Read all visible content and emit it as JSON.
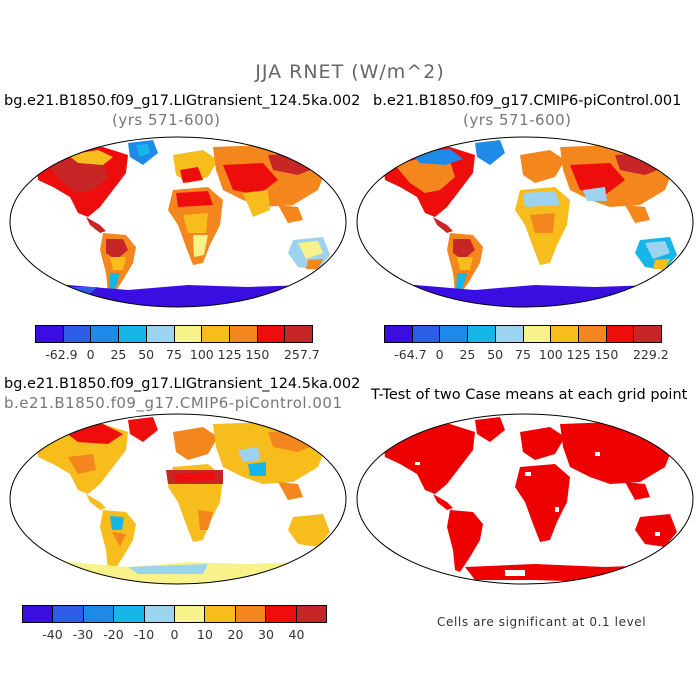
{
  "title": "JJA RNET (W/m^2)",
  "panels": {
    "tl": {
      "title": "bg.e21.B1850.f09_g17.LIGtransient_124.5ka.002",
      "subtitle": "(yrs 571-600)"
    },
    "tr": {
      "title": "b.e21.B1850.f09_g17.CMIP6-piControl.001",
      "subtitle": "(yrs 571-600)"
    },
    "bl": {
      "title": "bg.e21.B1850.f09_g17.LIGtransient_124.5ka.002",
      "subtitle": "b.e21.B1850.f09_g17.CMIP6-piControl.001"
    },
    "br": {
      "title": "T-Test of two Case means at each grid point",
      "note": "Cells are significant at 0.1 level"
    }
  },
  "colorbars": {
    "tl": {
      "colors": [
        "#3a0ee0",
        "#2f5ce6",
        "#1f8ae8",
        "#16b7e8",
        "#9ed3ef",
        "#f8f28a",
        "#f6bd1c",
        "#f4861e",
        "#ee0d0d",
        "#c62626"
      ],
      "labels": [
        "-62.9",
        "0",
        "25",
        "50",
        "75",
        "100",
        "125",
        "150",
        "257.7"
      ]
    },
    "tr": {
      "colors": [
        "#3a0ee0",
        "#2f5ce6",
        "#1f8ae8",
        "#16b7e8",
        "#9ed3ef",
        "#f8f28a",
        "#f6bd1c",
        "#f4861e",
        "#ee0d0d",
        "#c62626"
      ],
      "labels": [
        "-64.7",
        "0",
        "25",
        "50",
        "75",
        "100",
        "125",
        "150",
        "229.2"
      ]
    },
    "bl": {
      "colors": [
        "#3a0ee0",
        "#2f5ce6",
        "#1f8ae8",
        "#16b7e8",
        "#9ed3ef",
        "#f8f28a",
        "#f6bd1c",
        "#f4861e",
        "#ee0d0d",
        "#c62626"
      ],
      "labels": [
        "-40",
        "-30",
        "-20",
        "-10",
        "0",
        "10",
        "20",
        "30",
        "40"
      ]
    }
  }
}
